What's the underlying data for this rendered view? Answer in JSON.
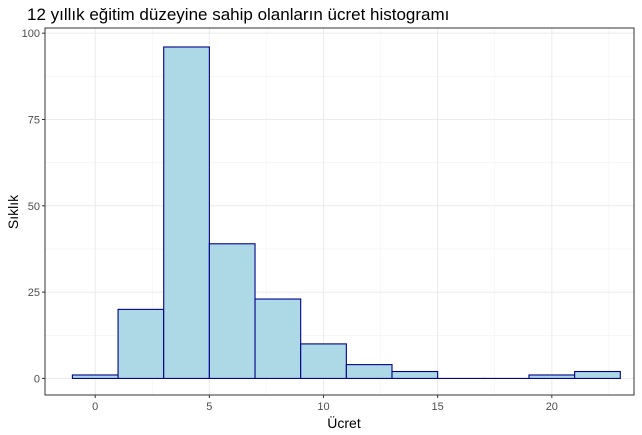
{
  "chart_data": {
    "type": "bar",
    "title": "12 yıllık eğitim düzeyine sahip olanların ücret histogramı",
    "xlabel": "Ücret",
    "ylabel": "Sıklık",
    "xlim": [
      -2.2,
      23.6
    ],
    "ylim": [
      -4.8,
      101.5
    ],
    "x_ticks": [
      0,
      5,
      10,
      15,
      20
    ],
    "y_ticks": [
      0,
      25,
      50,
      75,
      100
    ],
    "grid": true,
    "bins": [
      {
        "x0": -1,
        "x1": 1,
        "count": 1
      },
      {
        "x0": 1,
        "x1": 3,
        "count": 20
      },
      {
        "x0": 3,
        "x1": 5,
        "count": 96
      },
      {
        "x0": 5,
        "x1": 7,
        "count": 39
      },
      {
        "x0": 7,
        "x1": 9,
        "count": 23
      },
      {
        "x0": 9,
        "x1": 11,
        "count": 10
      },
      {
        "x0": 11,
        "x1": 13,
        "count": 4
      },
      {
        "x0": 13,
        "x1": 15,
        "count": 2
      },
      {
        "x0": 15,
        "x1": 17,
        "count": 0
      },
      {
        "x0": 17,
        "x1": 19,
        "count": 0
      },
      {
        "x0": 19,
        "x1": 21,
        "count": 1
      },
      {
        "x0": 21,
        "x1": 23,
        "count": 2
      }
    ],
    "colors": {
      "bar_fill": "#add8e6",
      "bar_stroke": "#00008b",
      "grid_major": "#ebebeb",
      "grid_minor": "#f2f2f2",
      "panel_border": "#333333",
      "tick_text": "#4d4d4d"
    }
  }
}
